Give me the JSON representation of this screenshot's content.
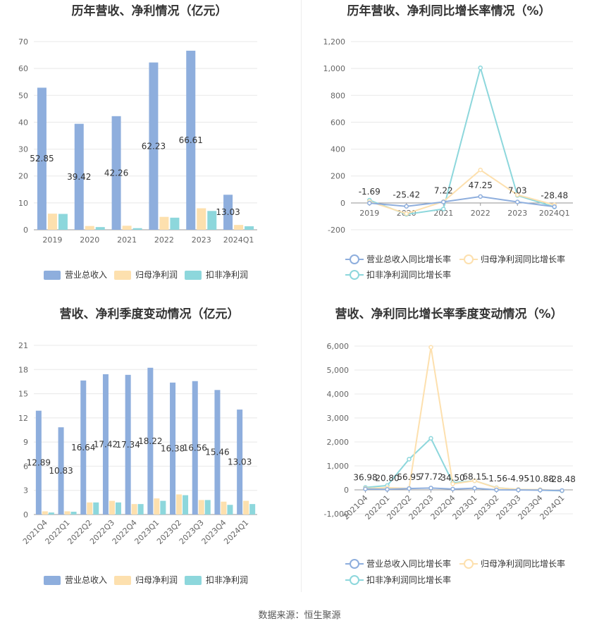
{
  "footer": "数据来源：恒生聚源",
  "colors": {
    "revenue": "#8eaedd",
    "net_profit": "#fde0ae",
    "deducted_profit": "#8dd7dc"
  },
  "chart_data": [
    {
      "id": "annual_values",
      "type": "bar",
      "title": "历年营收、净利情况（亿元）",
      "categories": [
        "2019",
        "2020",
        "2021",
        "2022",
        "2023",
        "2024Q1"
      ],
      "ylim": [
        0,
        70
      ],
      "yticks": [
        0,
        10,
        20,
        30,
        40,
        50,
        60,
        70
      ],
      "label_series": 0,
      "series": [
        {
          "name": "营业总收入",
          "values": [
            52.85,
            39.42,
            42.26,
            62.23,
            66.61,
            13.03
          ],
          "labels": [
            "52.85",
            "39.42",
            "42.26",
            "62.23",
            "66.61",
            "13.03"
          ]
        },
        {
          "name": "归母净利润",
          "values": [
            6.0,
            1.4,
            1.5,
            4.8,
            8.0,
            1.8
          ]
        },
        {
          "name": "扣非净利润",
          "values": [
            5.9,
            1.0,
            0.6,
            4.5,
            7.0,
            1.3
          ]
        }
      ],
      "grid": true,
      "legend": "bottom"
    },
    {
      "id": "annual_growth",
      "type": "line",
      "title": "历年营收、净利同比增长率情况（%）",
      "categories": [
        "2019",
        "2020",
        "2021",
        "2022",
        "2023",
        "2024Q1"
      ],
      "ylim": [
        -200,
        1200
      ],
      "yticks": [
        -200,
        0,
        200,
        400,
        600,
        800,
        1000,
        1200
      ],
      "ytick_labels": [
        "-200",
        "0",
        "200",
        "400",
        "600",
        "800",
        "1,000",
        "1,200"
      ],
      "label_series": 0,
      "series": [
        {
          "name": "营业总收入同比增长率",
          "values": [
            -1.69,
            -25.42,
            7.22,
            47.25,
            7.03,
            -28.48
          ],
          "labels": [
            "-1.69",
            "-25.42",
            "7.22",
            "47.25",
            "7.03",
            "-28.48"
          ]
        },
        {
          "name": "归母净利润同比增长率",
          "values": [
            10,
            -80,
            10,
            245,
            60,
            -15
          ]
        },
        {
          "name": "扣非净利润同比增长率",
          "values": [
            20,
            -85,
            -45,
            1005,
            55,
            -30
          ]
        }
      ],
      "grid": true,
      "legend": "bottom"
    },
    {
      "id": "quarterly_values",
      "type": "bar",
      "title": "营收、净利季度变动情况（亿元）",
      "categories": [
        "2021Q4",
        "2022Q1",
        "2022Q2",
        "2022Q3",
        "2022Q4",
        "2023Q1",
        "2023Q2",
        "2023Q3",
        "2023Q4",
        "2024Q1"
      ],
      "ylim": [
        0,
        21
      ],
      "yticks": [
        0,
        3,
        6,
        9,
        12,
        15,
        18,
        21
      ],
      "label_series": 0,
      "series": [
        {
          "name": "营业总收入",
          "values": [
            12.89,
            10.83,
            16.64,
            17.42,
            17.34,
            18.22,
            16.38,
            16.56,
            15.46,
            13.03
          ],
          "labels": [
            "12.89",
            "10.83",
            "16.64",
            "17.42",
            "17.34",
            "18.22",
            "16.38",
            "16.56",
            "15.46",
            "13.03"
          ]
        },
        {
          "name": "归母净利润",
          "values": [
            0.4,
            0.4,
            1.5,
            1.7,
            1.3,
            2.0,
            2.5,
            1.8,
            1.6,
            1.7
          ]
        },
        {
          "name": "扣非净利润",
          "values": [
            0.25,
            0.35,
            1.5,
            1.5,
            1.3,
            1.7,
            2.4,
            1.8,
            1.2,
            1.3
          ]
        }
      ],
      "grid": true,
      "legend": "bottom"
    },
    {
      "id": "quarterly_growth",
      "type": "line",
      "title": "营收、净利同比增长率季度变动情况（%）",
      "categories": [
        "2021Q4",
        "2022Q1",
        "2022Q2",
        "2022Q3",
        "2022Q4",
        "2023Q1",
        "2023Q2",
        "2023Q3",
        "2023Q4",
        "2024Q1"
      ],
      "ylim": [
        -1000,
        6000
      ],
      "yticks": [
        -1000,
        0,
        1000,
        2000,
        3000,
        4000,
        5000,
        6000
      ],
      "ytick_labels": [
        "-1,000",
        "0",
        "1,000",
        "2,000",
        "3,000",
        "4,000",
        "5,000",
        "6,000"
      ],
      "label_series": 0,
      "series": [
        {
          "name": "营业总收入同比增长率",
          "values": [
            36.98,
            20.8,
            56.95,
            77.72,
            34.5,
            68.15,
            -1.56,
            -4.95,
            -10.88,
            -28.48
          ],
          "labels": [
            "36.98",
            "20.80",
            "56.95",
            "77.72",
            "34.50",
            "68.15",
            "-1.56",
            "-4.95",
            "-10.88",
            "-28.48"
          ]
        },
        {
          "name": "归母净利润同比增长率",
          "values": [
            60,
            90,
            60,
            5950,
            250,
            380,
            80,
            20,
            10,
            -30
          ]
        },
        {
          "name": "扣非净利润同比增长率",
          "values": [
            100,
            180,
            1280,
            2150,
            300,
            380,
            90,
            20,
            -10,
            -40
          ]
        }
      ],
      "grid": true,
      "legend": "bottom"
    }
  ]
}
